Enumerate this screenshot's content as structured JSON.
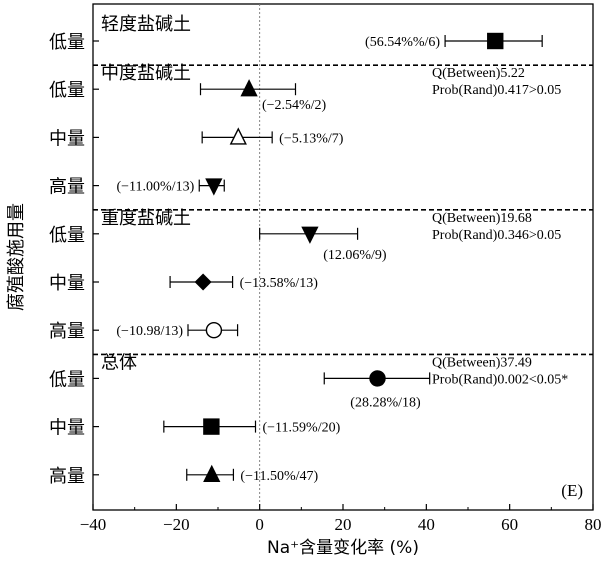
{
  "chart_data": {
    "type": "forest",
    "panel_label": "(E)",
    "xlabel": "Na⁺含量变化率 (%)",
    "ylabel": "腐殖酸施用量",
    "xlim": [
      -40,
      80
    ],
    "xticks": [
      "−40",
      "−20",
      "0",
      "20",
      "40",
      "60",
      "80"
    ],
    "reference_line_x": 0,
    "groups": [
      {
        "name": "轻度盐碱土",
        "stat": "",
        "prob": "",
        "rows": [
          {
            "level": "低量",
            "mean": 56.54,
            "ci": [
              44.5,
              67.8
            ],
            "marker": "square-filled",
            "label": "(56.54%%/6)",
            "label_side": "left"
          }
        ]
      },
      {
        "name": "中度盐碱土",
        "stat": "Q(Between)5.22",
        "prob": "Prob(Rand)0.417>0.05",
        "rows": [
          {
            "level": "低量",
            "mean": -2.54,
            "ci": [
              -14.2,
              8.6
            ],
            "marker": "triangle-up-filled",
            "label": "(−2.54%/2)",
            "label_side": "below"
          },
          {
            "level": "中量",
            "mean": -5.13,
            "ci": [
              -13.8,
              3.0
            ],
            "marker": "triangle-up-open",
            "label": "(−5.13%/7)",
            "label_side": "right"
          },
          {
            "level": "高量",
            "mean": -11.0,
            "ci": [
              -14.5,
              -8.5
            ],
            "marker": "triangle-down-filled",
            "label": "(−11.00%/13)",
            "label_side": "left"
          }
        ]
      },
      {
        "name": "重度盐碱土",
        "stat": "Q(Between)19.68",
        "prob": "Prob(Rand)0.346>0.05",
        "rows": [
          {
            "level": "低量",
            "mean": 12.06,
            "ci": [
              0.0,
              23.5
            ],
            "marker": "triangle-down-filled",
            "label": "(12.06%/9)",
            "label_side": "below"
          },
          {
            "level": "中量",
            "mean": -13.58,
            "ci": [
              -21.5,
              -6.5
            ],
            "marker": "diamond-filled",
            "label": "(−13.58%/13)",
            "label_side": "right"
          },
          {
            "level": "高量",
            "mean": -10.98,
            "ci": [
              -17.2,
              -5.3
            ],
            "marker": "circle-open",
            "label": "(−10.98/13)",
            "label_side": "left"
          }
        ]
      },
      {
        "name": "总体",
        "stat": "Q(Between)37.49",
        "prob": "Prob(Rand)0.002<0.05*",
        "rows": [
          {
            "level": "低量",
            "mean": 28.28,
            "ci": [
              15.5,
              40.8
            ],
            "marker": "circle-filled",
            "label": "(28.28%/18)",
            "label_side": "below"
          },
          {
            "level": "中量",
            "mean": -11.59,
            "ci": [
              -23.0,
              -1.0
            ],
            "marker": "square-filled",
            "label": "(−11.59%/20)",
            "label_side": "right"
          },
          {
            "level": "高量",
            "mean": -11.5,
            "ci": [
              -17.5,
              -6.3
            ],
            "marker": "triangle-up-filled",
            "label": "(−11.50%/47)",
            "label_side": "right"
          }
        ]
      }
    ]
  }
}
